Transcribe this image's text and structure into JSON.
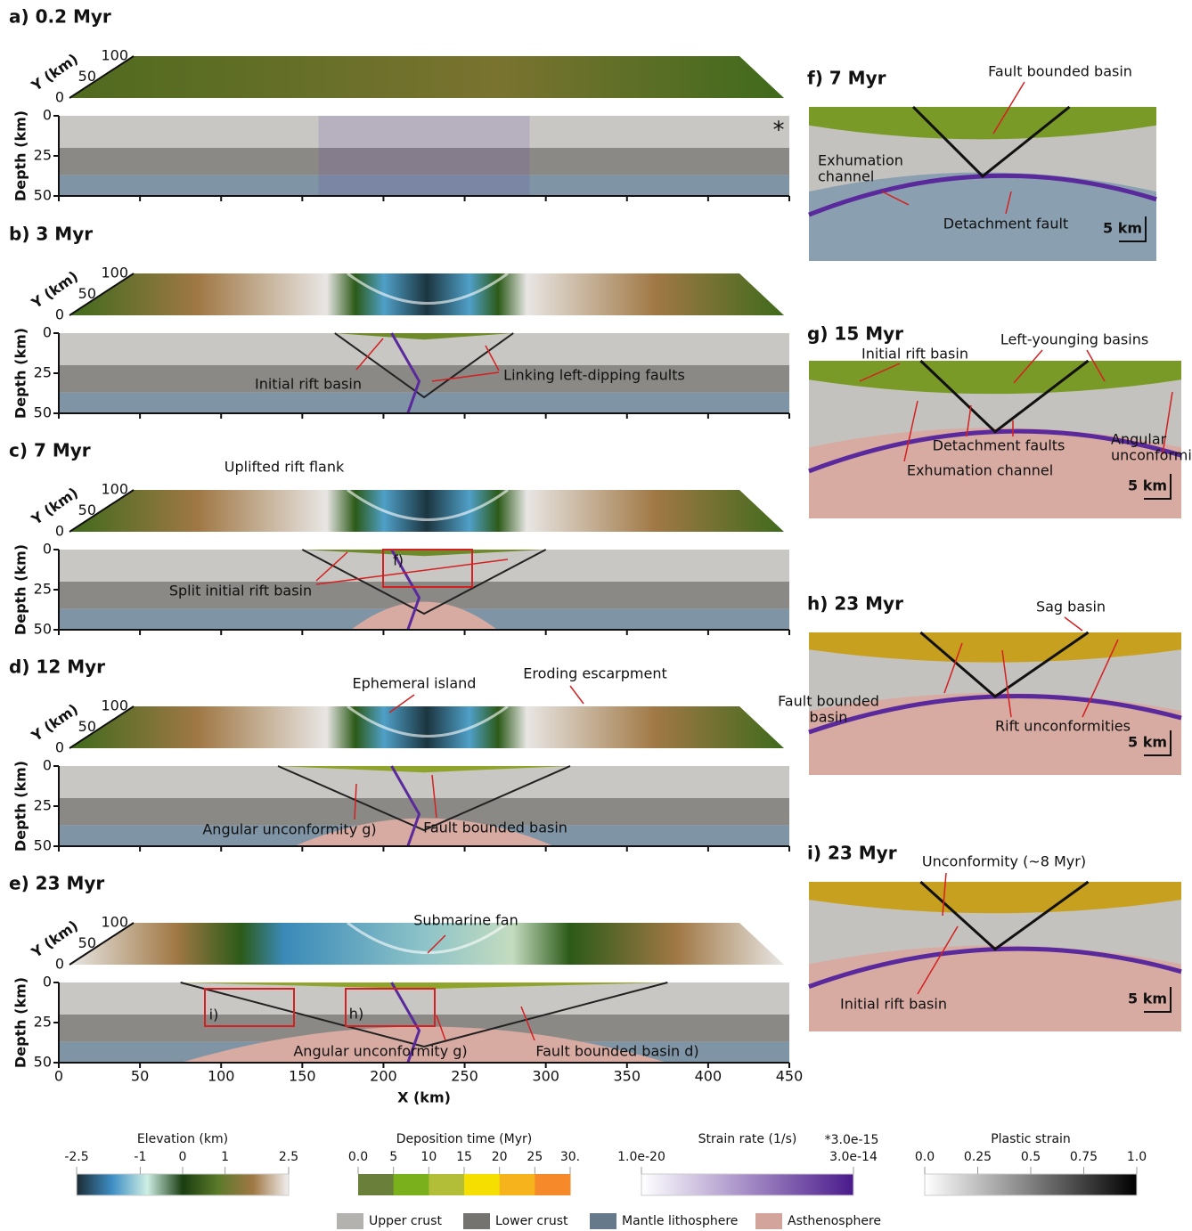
{
  "panels": [
    {
      "label": "a) 0.2 Myr",
      "marker": "*",
      "annotations": []
    },
    {
      "label": "b) 3 Myr",
      "annotations": [
        "Initial rift basin",
        "Linking left-dipping faults"
      ]
    },
    {
      "label": "c) 7 Myr",
      "annotations": [
        "Uplifted rift flank",
        "f)",
        "Split initial rift basin"
      ]
    },
    {
      "label": "d) 12 Myr",
      "annotations": [
        "Ephemeral island",
        "Eroding escarpment",
        "Angular unconformity g)",
        "Fault bounded basin"
      ]
    },
    {
      "label": "e) 23 Myr",
      "annotations": [
        "Submarine fan",
        "i)",
        "h)",
        "Angular unconformity g)",
        "Fault bounded basin d)"
      ]
    }
  ],
  "axes": {
    "y_label": "Y (km)",
    "y_ticks": [
      0,
      50,
      100
    ],
    "depth_label": "Depth (km)",
    "depth_ticks": [
      0,
      25,
      50
    ],
    "depth_lim": [
      0,
      50
    ],
    "x_label": "X (km)",
    "x_ticks": [
      0,
      50,
      100,
      150,
      200,
      250,
      300,
      350,
      400,
      450
    ],
    "x_lim": [
      0,
      450
    ]
  },
  "zoom_panels": [
    {
      "label": "f) 7 Myr",
      "scale": "5 km",
      "annotations": [
        [
          "Fault bounded basin"
        ],
        [
          "Exhumation",
          "channel"
        ],
        [
          "Detachment fault"
        ]
      ]
    },
    {
      "label": "g) 15 Myr",
      "scale": "5 km",
      "annotations": [
        [
          "Initial rift basin"
        ],
        [
          "Left-younging basins"
        ],
        [
          "Detachment faults"
        ],
        [
          "Angular",
          "unconformity"
        ],
        [
          "Exhumation channel"
        ]
      ]
    },
    {
      "label": "h) 23 Myr",
      "scale": "5 km",
      "annotations": [
        [
          "Sag basin"
        ],
        [
          "Fault bounded",
          "basin"
        ],
        [
          "Rift unconformities"
        ]
      ]
    },
    {
      "label": "i) 23 Myr",
      "scale": "5 km",
      "annotations": [
        [
          "Unconformity (~8 Myr)"
        ],
        [
          "Initial rift basin"
        ]
      ]
    }
  ],
  "colorbars": [
    {
      "title": "Elevation (km)",
      "range": [
        -2.5,
        2.5
      ],
      "ticks": [
        {
          "value": -2.5,
          "label": "-2.5"
        },
        {
          "value": -1,
          "label": "-1"
        },
        {
          "value": 0,
          "label": "0"
        },
        {
          "value": 1,
          "label": "1"
        },
        {
          "value": 2.5,
          "label": "2.5"
        }
      ],
      "colors": [
        "#1c2b33",
        "#3d8ec4",
        "#cdeee4",
        "#1a3d10",
        "#5b7a2a",
        "#a07845",
        "#f2f0f0"
      ]
    },
    {
      "title": "Deposition time (Myr)",
      "range": [
        0,
        30
      ],
      "ticks": [
        {
          "value": 0,
          "label": "0.0"
        },
        {
          "value": 5,
          "label": "5"
        },
        {
          "value": 10,
          "label": "10"
        },
        {
          "value": 15,
          "label": "15"
        },
        {
          "value": 20,
          "label": "20"
        },
        {
          "value": 25,
          "label": "25"
        },
        {
          "value": 30,
          "label": "30."
        }
      ],
      "colors": [
        "#6a7f3a",
        "#79b01c",
        "#b2be38",
        "#f5df00",
        "#f6b31b",
        "#f68a2a"
      ]
    },
    {
      "title": "Strain rate (1/s)",
      "note": "*3.0e-15",
      "ticks": [
        "1.0e-20",
        "3.0e-14"
      ],
      "colors": [
        "#ffffff",
        "#4a1a8c"
      ]
    },
    {
      "title": "Plastic strain",
      "range": [
        0,
        1
      ],
      "ticks": [
        {
          "value": 0,
          "label": "0.0"
        },
        {
          "value": 0.25,
          "label": "0.25"
        },
        {
          "value": 0.5,
          "label": "0.5"
        },
        {
          "value": 0.75,
          "label": "0.75"
        },
        {
          "value": 1,
          "label": "1.0"
        }
      ],
      "colors": [
        "#ffffff",
        "#000000"
      ]
    }
  ],
  "materials": [
    {
      "name": "Upper crust",
      "color": "#b4b2ae"
    },
    {
      "name": "Lower crust",
      "color": "#74736f"
    },
    {
      "name": "Mantle lithosphere",
      "color": "#66798a"
    },
    {
      "name": "Asthenosphere",
      "color": "#d3a49c"
    }
  ]
}
